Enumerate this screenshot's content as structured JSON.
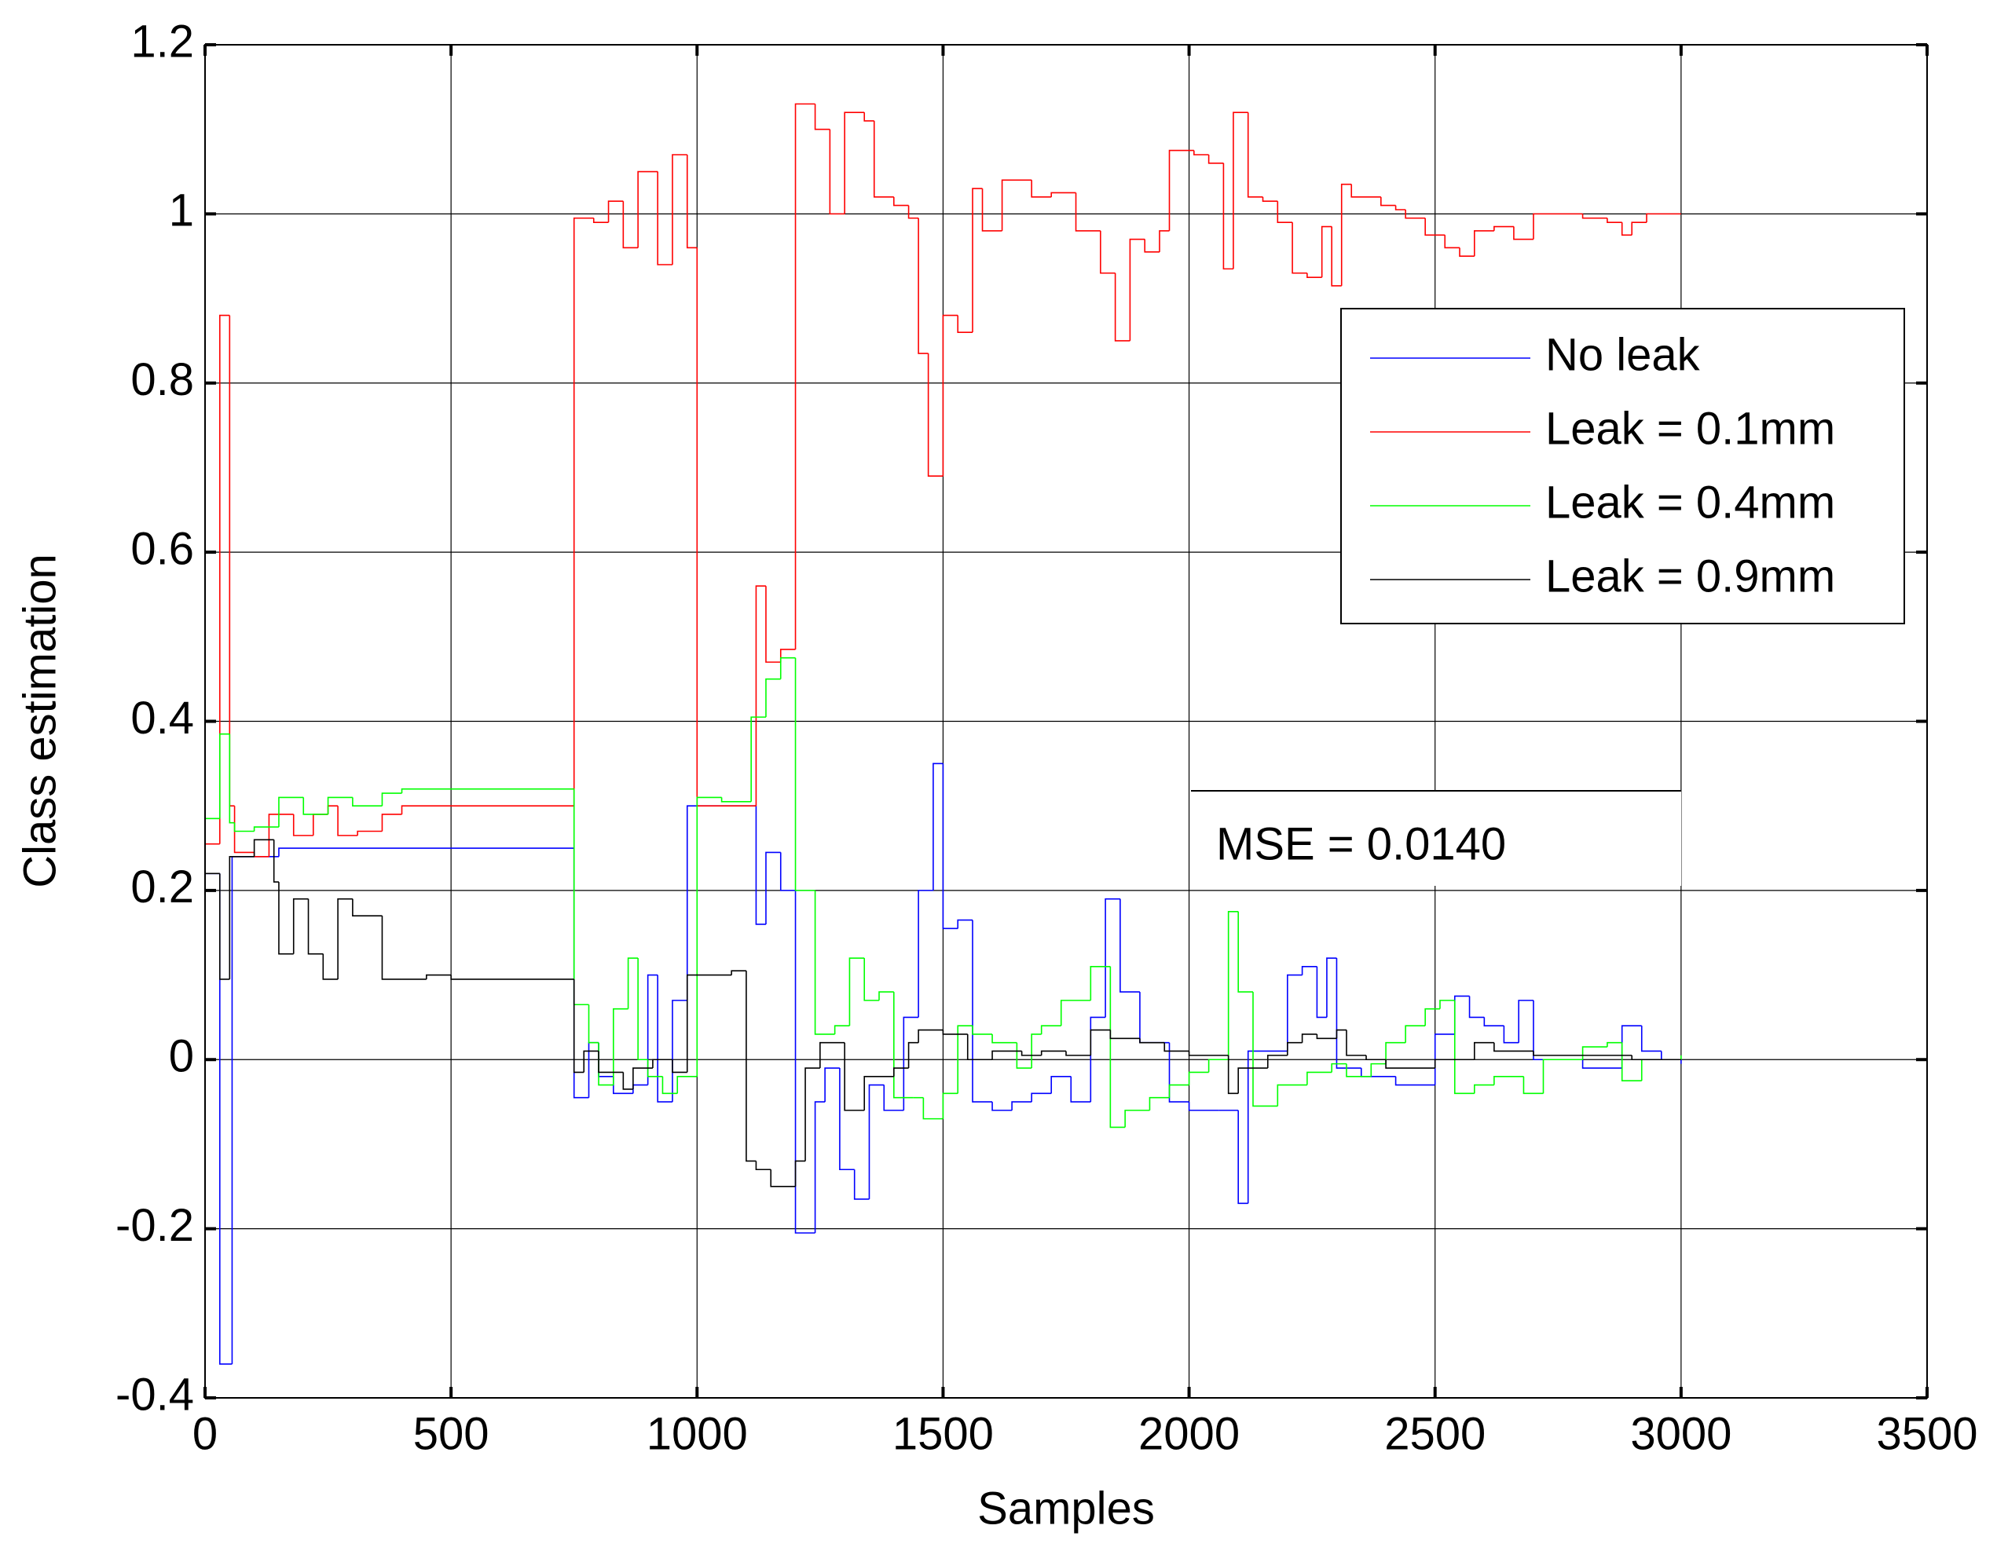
{
  "chart_data": {
    "type": "line",
    "drawstyle": "steps-post",
    "xlabel": "Samples",
    "ylabel": "Class estimation",
    "xlim": [
      0,
      3500
    ],
    "xticks": [
      0,
      500,
      1000,
      1500,
      2000,
      2500,
      3000,
      3500
    ],
    "ylim": [
      -0.4,
      1.2
    ],
    "yticks": [
      -0.4,
      -0.2,
      0,
      0.2,
      0.4,
      0.6,
      0.8,
      1,
      1.2
    ],
    "grid": true,
    "legend": "upper right",
    "annotation": "MSE = 0.0140",
    "series": [
      {
        "name": "No leak",
        "color": "#0000ff",
        "x": [
          0,
          30,
          55,
          100,
          150,
          750,
          780,
          800,
          830,
          870,
          900,
          920,
          950,
          980,
          1110,
          1120,
          1140,
          1170,
          1200,
          1240,
          1260,
          1290,
          1320,
          1350,
          1380,
          1420,
          1450,
          1480,
          1500,
          1530,
          1560,
          1600,
          1640,
          1680,
          1720,
          1760,
          1800,
          1830,
          1860,
          1900,
          1960,
          2000,
          2060,
          2100,
          2120,
          2200,
          2230,
          2260,
          2280,
          2300,
          2350,
          2420,
          2500,
          2540,
          2570,
          2600,
          2640,
          2670,
          2700,
          2800,
          2880,
          2920,
          2960,
          3000
        ],
        "values": [
          0.22,
          -0.36,
          0.24,
          0.24,
          0.25,
          -0.045,
          0.02,
          -0.02,
          -0.04,
          -0.03,
          0.1,
          -0.05,
          0.07,
          0.3,
          0.3,
          0.16,
          0.245,
          0.2,
          -0.205,
          -0.05,
          -0.01,
          -0.13,
          -0.165,
          -0.03,
          -0.06,
          0.05,
          0.2,
          0.35,
          0.155,
          0.165,
          -0.05,
          -0.06,
          -0.05,
          -0.04,
          -0.02,
          -0.05,
          0.05,
          0.19,
          0.08,
          0.02,
          -0.05,
          -0.06,
          -0.06,
          -0.17,
          0.01,
          0.1,
          0.11,
          0.05,
          0.12,
          -0.01,
          -0.02,
          -0.03,
          0.03,
          0.075,
          0.05,
          0.04,
          0.02,
          0.07,
          0,
          -0.01,
          0.04,
          0.01,
          0,
          -0.005
        ]
      },
      {
        "name": "Leak = 0.1mm",
        "color": "#ff0000",
        "x": [
          0,
          30,
          50,
          60,
          100,
          130,
          180,
          220,
          250,
          270,
          310,
          360,
          400,
          750,
          790,
          820,
          850,
          880,
          920,
          950,
          980,
          1000,
          1120,
          1140,
          1170,
          1200,
          1240,
          1270,
          1300,
          1340,
          1360,
          1400,
          1430,
          1450,
          1470,
          1500,
          1530,
          1560,
          1580,
          1620,
          1680,
          1720,
          1770,
          1820,
          1850,
          1880,
          1910,
          1940,
          1960,
          2010,
          2040,
          2070,
          2090,
          2120,
          2150,
          2180,
          2210,
          2240,
          2270,
          2290,
          2310,
          2330,
          2390,
          2420,
          2440,
          2480,
          2520,
          2550,
          2580,
          2620,
          2660,
          2700,
          2800,
          2850,
          2880,
          2900,
          2930,
          3000
        ],
        "values": [
          0.255,
          0.88,
          0.3,
          0.245,
          0.24,
          0.29,
          0.265,
          0.29,
          0.3,
          0.265,
          0.27,
          0.29,
          0.3,
          0.995,
          0.99,
          1.015,
          0.96,
          1.05,
          0.94,
          1.07,
          0.96,
          0.3,
          0.56,
          0.47,
          0.485,
          1.13,
          1.1,
          1,
          1.12,
          1.11,
          1.02,
          1.01,
          0.995,
          0.835,
          0.69,
          0.88,
          0.86,
          1.03,
          0.98,
          1.04,
          1.02,
          1.025,
          0.98,
          0.93,
          0.85,
          0.97,
          0.955,
          0.98,
          1.075,
          1.07,
          1.06,
          0.935,
          1.12,
          1.02,
          1.015,
          0.99,
          0.93,
          0.925,
          0.985,
          0.915,
          1.035,
          1.02,
          1.01,
          1.005,
          0.995,
          0.975,
          0.96,
          0.95,
          0.98,
          0.985,
          0.97,
          1,
          0.995,
          0.99,
          0.975,
          0.99,
          1,
          1
        ]
      },
      {
        "name": "Leak = 0.4mm",
        "color": "#00ff00",
        "x": [
          0,
          30,
          50,
          60,
          100,
          150,
          200,
          250,
          300,
          360,
          400,
          750,
          780,
          800,
          830,
          860,
          880,
          900,
          930,
          960,
          1000,
          1050,
          1110,
          1140,
          1170,
          1200,
          1240,
          1280,
          1310,
          1340,
          1370,
          1400,
          1440,
          1460,
          1500,
          1530,
          1560,
          1600,
          1650,
          1680,
          1700,
          1740,
          1800,
          1840,
          1870,
          1920,
          1960,
          2000,
          2040,
          2080,
          2100,
          2130,
          2180,
          2240,
          2290,
          2320,
          2370,
          2400,
          2440,
          2480,
          2510,
          2540,
          2580,
          2620,
          2680,
          2720,
          2800,
          2850,
          2880,
          2920,
          3000
        ],
        "values": [
          0.285,
          0.385,
          0.28,
          0.27,
          0.275,
          0.31,
          0.29,
          0.31,
          0.3,
          0.315,
          0.32,
          0.065,
          0.02,
          -0.03,
          0.06,
          0.12,
          0,
          -0.02,
          -0.04,
          -0.02,
          0.31,
          0.305,
          0.405,
          0.45,
          0.475,
          0.2,
          0.03,
          0.04,
          0.12,
          0.07,
          0.08,
          -0.045,
          -0.045,
          -0.07,
          -0.04,
          0.04,
          0.03,
          0.02,
          -0.01,
          0.03,
          0.04,
          0.07,
          0.11,
          -0.08,
          -0.06,
          -0.045,
          -0.03,
          -0.015,
          0,
          0.175,
          0.08,
          -0.055,
          -0.03,
          -0.015,
          -0.005,
          -0.02,
          -0.005,
          0.02,
          0.04,
          0.06,
          0.07,
          -0.04,
          -0.03,
          -0.02,
          -0.04,
          0,
          0.015,
          0.02,
          -0.025,
          0,
          0.005
        ]
      },
      {
        "name": "Leak = 0.9mm",
        "color": "#000000",
        "x": [
          0,
          30,
          50,
          100,
          140,
          150,
          180,
          210,
          240,
          270,
          300,
          360,
          400,
          450,
          500,
          750,
          770,
          800,
          850,
          870,
          910,
          950,
          980,
          1070,
          1100,
          1120,
          1150,
          1200,
          1220,
          1250,
          1300,
          1340,
          1400,
          1430,
          1450,
          1500,
          1550,
          1600,
          1660,
          1700,
          1750,
          1800,
          1840,
          1900,
          1950,
          2000,
          2080,
          2100,
          2160,
          2200,
          2230,
          2260,
          2300,
          2320,
          2360,
          2400,
          2500,
          2580,
          2620,
          2700,
          2900,
          3000
        ],
        "values": [
          0.22,
          0.095,
          0.24,
          0.26,
          0.21,
          0.125,
          0.19,
          0.125,
          0.095,
          0.19,
          0.17,
          0.095,
          0.095,
          0.1,
          0.095,
          -0.015,
          0.01,
          -0.015,
          -0.035,
          -0.01,
          0,
          -0.015,
          0.1,
          0.105,
          -0.12,
          -0.13,
          -0.15,
          -0.12,
          -0.01,
          0.02,
          -0.06,
          -0.02,
          -0.01,
          0.02,
          0.035,
          0.03,
          0,
          0.01,
          0.005,
          0.01,
          0.005,
          0.035,
          0.025,
          0.02,
          0.01,
          0.005,
          -0.04,
          -0.01,
          0.005,
          0.02,
          0.03,
          0.025,
          0.035,
          0.005,
          0,
          -0.01,
          0,
          0.02,
          0.01,
          0.005,
          0,
          0
        ]
      }
    ]
  }
}
